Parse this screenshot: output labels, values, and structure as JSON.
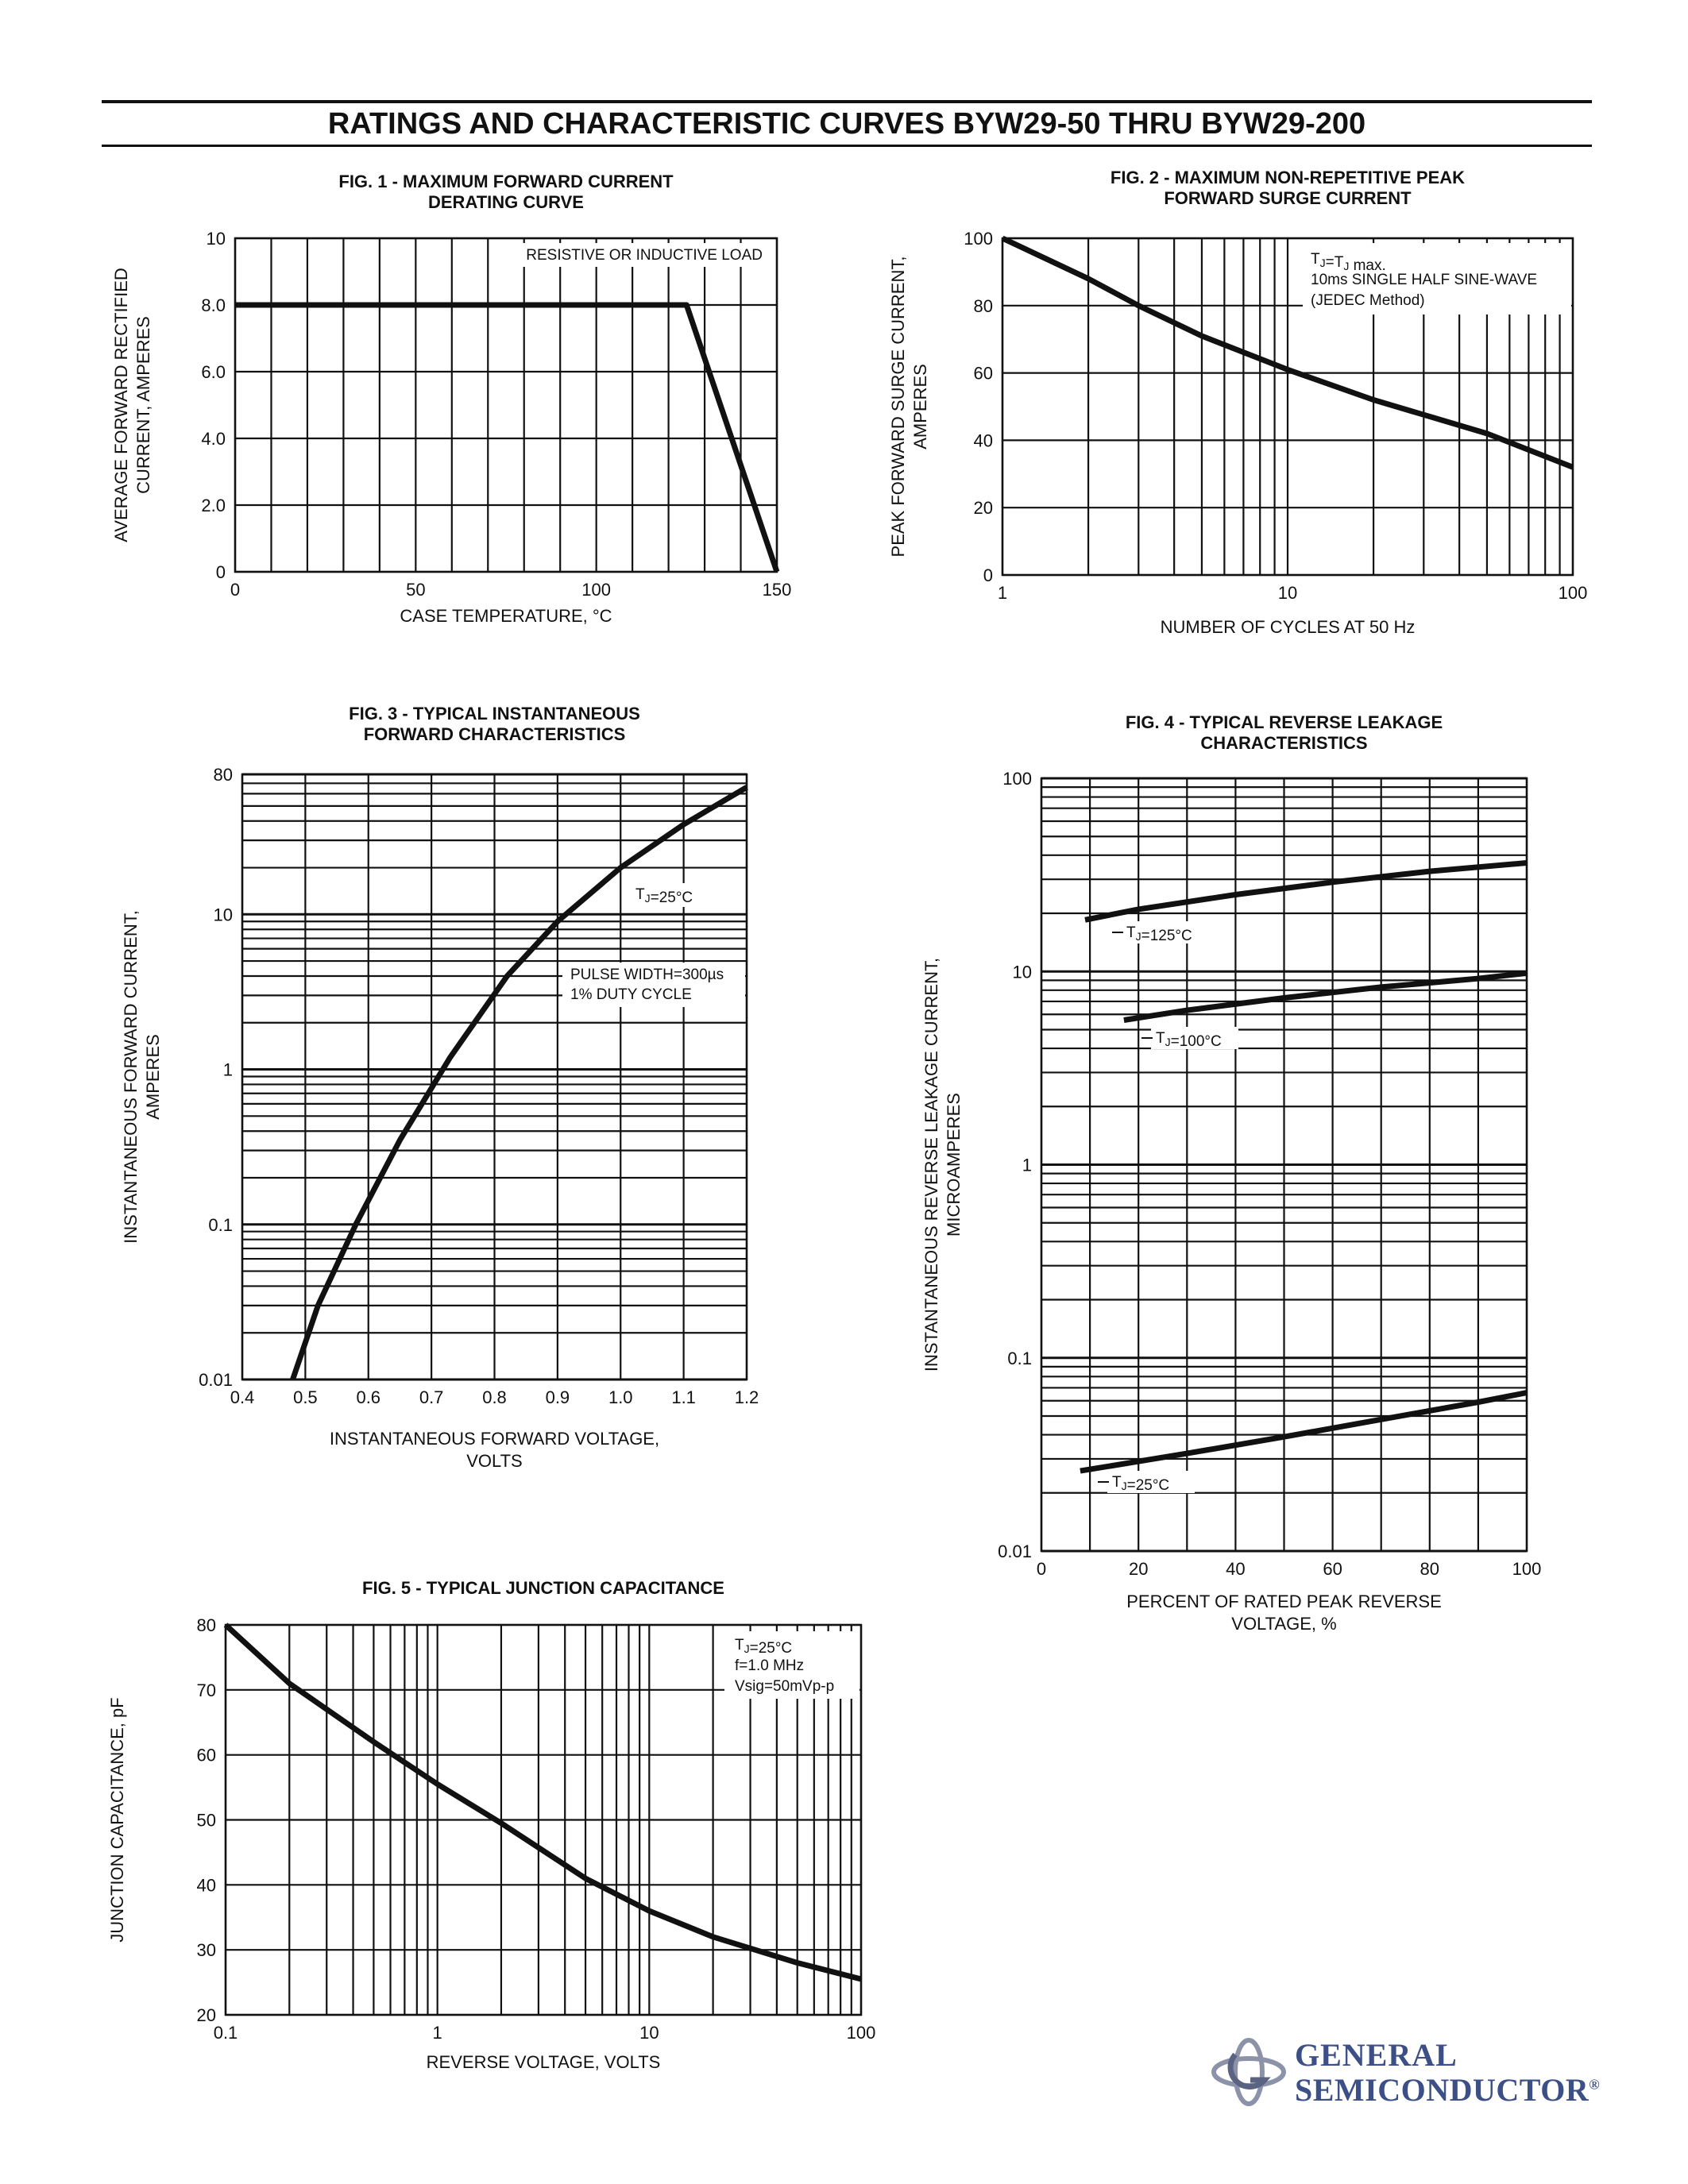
{
  "page": {
    "title": "RATINGS AND CHARACTERISTIC CURVES BYW29-50 THRU BYW29-200",
    "logo": {
      "line1": "GENERAL",
      "line2": "SEMICONDUCTOR",
      "registered": "®",
      "icon": "general-semiconductor-logo-icon",
      "color": "#3c4f86"
    }
  },
  "chart_data": [
    {
      "id": "fig1",
      "type": "line",
      "title": [
        "FIG. 1 - MAXIMUM FORWARD CURRENT",
        "DERATING CURVE"
      ],
      "xlabel": [
        "CASE TEMPERATURE, °C"
      ],
      "ylabel": [
        "AVERAGE FORWARD RECTIFIED",
        "CURRENT, AMPERES"
      ],
      "xscale": "linear",
      "yscale": "linear",
      "xlim": [
        0,
        150
      ],
      "ylim": [
        0,
        10
      ],
      "xticks": [
        {
          "v": 0,
          "label": "0"
        },
        {
          "v": 50,
          "label": "50"
        },
        {
          "v": 100,
          "label": "100"
        },
        {
          "v": 150,
          "label": "150"
        }
      ],
      "yticks": [
        {
          "v": 0,
          "label": "0"
        },
        {
          "v": 2,
          "label": "2.0"
        },
        {
          "v": 4,
          "label": "4.0"
        },
        {
          "v": 6,
          "label": "6.0"
        },
        {
          "v": 8,
          "label": "8.0"
        },
        {
          "v": 10,
          "label": "10"
        }
      ],
      "grid": true,
      "annotations": [
        {
          "text": "RESISTIVE OR INDUCTIVE LOAD",
          "pos": "top-right"
        }
      ],
      "series": [
        {
          "x": [
            0,
            122,
            125,
            150
          ],
          "y": [
            8.0,
            8.0,
            8.0,
            0
          ]
        }
      ]
    },
    {
      "id": "fig2",
      "type": "line",
      "title": [
        "FIG. 2 - MAXIMUM NON-REPETITIVE PEAK",
        "FORWARD SURGE CURRENT"
      ],
      "xlabel": [
        "NUMBER OF CYCLES AT 50 Hz"
      ],
      "ylabel": [
        "PEAK FORWARD SURGE CURRENT,",
        "AMPERES"
      ],
      "xscale": "log",
      "yscale": "linear",
      "xlim": [
        1,
        100
      ],
      "ylim": [
        0,
        100
      ],
      "xticks": [
        {
          "v": 1,
          "label": "1"
        },
        {
          "v": 10,
          "label": "10"
        },
        {
          "v": 100,
          "label": "100"
        }
      ],
      "yticks": [
        {
          "v": 0,
          "label": "0"
        },
        {
          "v": 20,
          "label": "20"
        },
        {
          "v": 40,
          "label": "40"
        },
        {
          "v": 60,
          "label": "60"
        },
        {
          "v": 80,
          "label": "80"
        },
        {
          "v": 100,
          "label": "100"
        }
      ],
      "grid": true,
      "annotations": [
        {
          "text": "TJ=TJ max.",
          "pos": "top-right"
        },
        {
          "text": "10ms SINGLE HALF SINE-WAVE",
          "pos": "top-right"
        },
        {
          "text": "(JEDEC Method)",
          "pos": "top-right"
        }
      ],
      "series": [
        {
          "x": [
            1,
            2,
            3,
            5,
            10,
            20,
            50,
            100
          ],
          "y": [
            100,
            88,
            80,
            71,
            61,
            52,
            42,
            32
          ]
        }
      ]
    },
    {
      "id": "fig3",
      "type": "line",
      "title": [
        "FIG. 3 - TYPICAL INSTANTANEOUS",
        "FORWARD CHARACTERISTICS"
      ],
      "xlabel": [
        "INSTANTANEOUS FORWARD VOLTAGE,",
        "VOLTS"
      ],
      "ylabel": [
        "INSTANTANEOUS FORWARD CURRENT,",
        "AMPERES"
      ],
      "xscale": "linear",
      "yscale": "log",
      "xlim": [
        0.4,
        1.2
      ],
      "ylim": [
        0.01,
        80
      ],
      "xticks": [
        {
          "v": 0.4,
          "label": "0.4"
        },
        {
          "v": 0.5,
          "label": "0.5"
        },
        {
          "v": 0.6,
          "label": "0.6"
        },
        {
          "v": 0.7,
          "label": "0.7"
        },
        {
          "v": 0.8,
          "label": "0.8"
        },
        {
          "v": 0.9,
          "label": "0.9"
        },
        {
          "v": 1.0,
          "label": "1.0"
        },
        {
          "v": 1.1,
          "label": "1.1"
        },
        {
          "v": 1.2,
          "label": "1.2"
        }
      ],
      "yticks": [
        {
          "v": 0.01,
          "label": "0.01"
        },
        {
          "v": 0.1,
          "label": "0.1"
        },
        {
          "v": 1,
          "label": "1"
        },
        {
          "v": 10,
          "label": "10"
        },
        {
          "v": 80,
          "label": "80"
        }
      ],
      "grid": true,
      "annotations": [
        {
          "text": "TJ=25°C",
          "pos": "upper-right"
        },
        {
          "text": "PULSE WIDTH=300µs",
          "pos": "right"
        },
        {
          "text": "1% DUTY CYCLE",
          "pos": "right"
        }
      ],
      "series": [
        {
          "x": [
            0.48,
            0.52,
            0.58,
            0.65,
            0.73,
            0.82,
            0.9,
            1.0,
            1.1,
            1.2
          ],
          "y": [
            0.01,
            0.03,
            0.1,
            0.35,
            1.2,
            4.0,
            9.0,
            20,
            38,
            66
          ]
        }
      ]
    },
    {
      "id": "fig4",
      "type": "line",
      "title": [
        "FIG. 4 - TYPICAL REVERSE LEAKAGE",
        "CHARACTERISTICS"
      ],
      "xlabel": [
        "PERCENT OF RATED PEAK REVERSE",
        "VOLTAGE, %"
      ],
      "ylabel": [
        "INSTANTANEOUS REVERSE LEAKAGE CURRENT,",
        "MICROAMPERES"
      ],
      "xscale": "linear",
      "yscale": "log",
      "xlim": [
        0,
        100
      ],
      "ylim": [
        0.01,
        100
      ],
      "xticks": [
        {
          "v": 0,
          "label": "0"
        },
        {
          "v": 20,
          "label": "20"
        },
        {
          "v": 40,
          "label": "40"
        },
        {
          "v": 60,
          "label": "60"
        },
        {
          "v": 80,
          "label": "80"
        },
        {
          "v": 100,
          "label": "100"
        }
      ],
      "yticks": [
        {
          "v": 0.01,
          "label": "0.01"
        },
        {
          "v": 0.1,
          "label": "0.1"
        },
        {
          "v": 1,
          "label": "1"
        },
        {
          "v": 10,
          "label": "10"
        },
        {
          "v": 100,
          "label": "100"
        }
      ],
      "grid": true,
      "series": [
        {
          "name": "TJ=125°C",
          "x": [
            9,
            20,
            40,
            60,
            80,
            100
          ],
          "y": [
            18.5,
            21,
            25,
            29,
            33,
            36.5
          ]
        },
        {
          "name": "TJ=100°C",
          "x": [
            17,
            30,
            50,
            70,
            90,
            100
          ],
          "y": [
            5.6,
            6.3,
            7.3,
            8.3,
            9.2,
            9.8
          ]
        },
        {
          "name": "TJ=25°C",
          "x": [
            8,
            30,
            50,
            70,
            90,
            100
          ],
          "y": [
            0.026,
            0.032,
            0.039,
            0.048,
            0.059,
            0.066
          ]
        }
      ]
    },
    {
      "id": "fig5",
      "type": "line",
      "title": [
        "FIG. 5 - TYPICAL JUNCTION CAPACITANCE"
      ],
      "xlabel": [
        "REVERSE VOLTAGE, VOLTS"
      ],
      "ylabel": [
        "JUNCTION CAPACITANCE, pF"
      ],
      "xscale": "log",
      "yscale": "linear",
      "xlim": [
        0.1,
        100
      ],
      "ylim": [
        20,
        80
      ],
      "xticks": [
        {
          "v": 0.1,
          "label": "0.1"
        },
        {
          "v": 1,
          "label": "1"
        },
        {
          "v": 10,
          "label": "10"
        },
        {
          "v": 100,
          "label": "100"
        }
      ],
      "yticks": [
        {
          "v": 20,
          "label": "20"
        },
        {
          "v": 30,
          "label": "30"
        },
        {
          "v": 40,
          "label": "40"
        },
        {
          "v": 50,
          "label": "50"
        },
        {
          "v": 60,
          "label": "60"
        },
        {
          "v": 70,
          "label": "70"
        },
        {
          "v": 80,
          "label": "80"
        }
      ],
      "grid": true,
      "annotations": [
        {
          "text": "TJ=25°C",
          "pos": "top-right"
        },
        {
          "text": "f=1.0 MHz",
          "pos": "top-right"
        },
        {
          "text": "Vsig=50mVp-p",
          "pos": "top-right"
        }
      ],
      "series": [
        {
          "x": [
            0.1,
            0.2,
            0.5,
            1,
            2,
            5,
            10,
            20,
            50,
            100
          ],
          "y": [
            80,
            71,
            62,
            55.5,
            49.5,
            41,
            36,
            32,
            28,
            25.5
          ]
        }
      ]
    }
  ]
}
